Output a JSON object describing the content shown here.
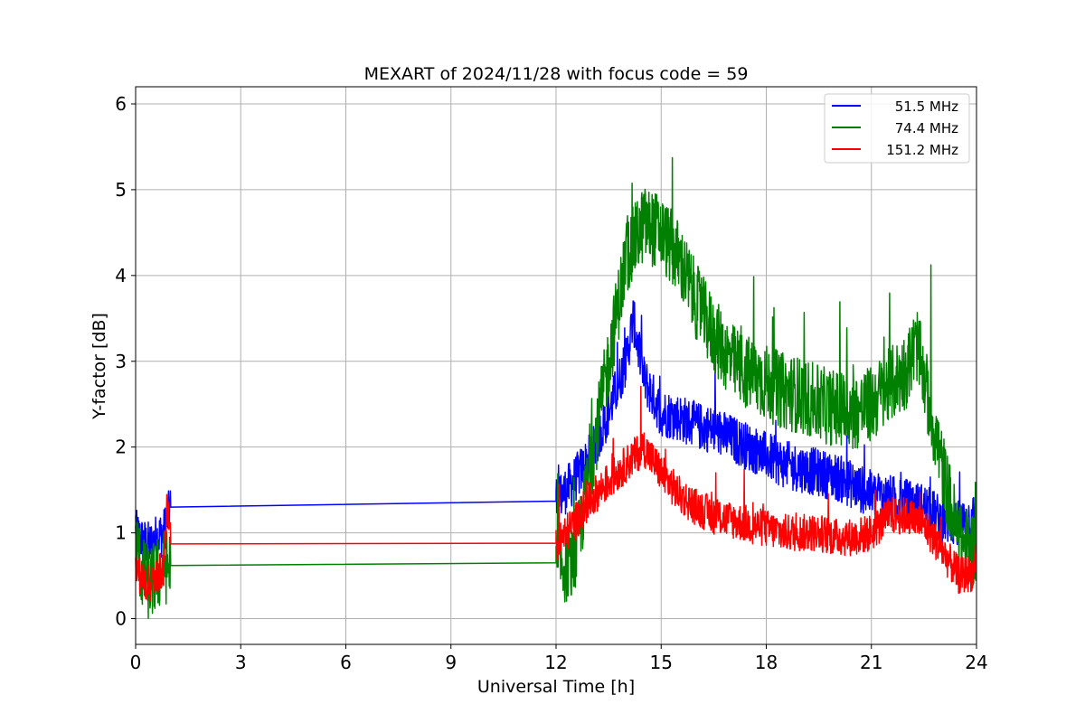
{
  "chart_data": {
    "type": "line",
    "title": "MEXART of 2024/11/28 with focus code = 59",
    "xlabel": "Universal Time [h]",
    "ylabel": "Y-factor [dB]",
    "xlim": [
      0,
      24
    ],
    "ylim": [
      -0.3,
      6.2
    ],
    "xticks": [
      0,
      3,
      6,
      9,
      12,
      15,
      18,
      21,
      24
    ],
    "yticks": [
      0,
      1,
      2,
      3,
      4,
      5,
      6
    ],
    "grid": true,
    "legend_position": "top-right",
    "series": [
      {
        "name": " 51.5 MHz",
        "color": "#0000ff",
        "x": [
          0,
          0.2,
          0.4,
          0.6,
          0.8,
          1.0,
          12.0,
          12.5,
          13.0,
          13.5,
          14.0,
          14.2,
          14.5,
          15.0,
          15.5,
          16.0,
          16.5,
          17.0,
          17.5,
          18.0,
          18.5,
          19.0,
          19.5,
          20.0,
          20.5,
          21.0,
          21.5,
          22.0,
          22.5,
          23.0,
          23.5,
          24.0
        ],
        "values": [
          1.0,
          0.9,
          0.85,
          0.95,
          1.0,
          1.3,
          1.37,
          1.6,
          1.9,
          2.4,
          3.0,
          3.5,
          2.8,
          2.4,
          2.35,
          2.25,
          2.2,
          2.1,
          2.0,
          1.9,
          1.8,
          1.75,
          1.7,
          1.65,
          1.55,
          1.45,
          1.4,
          1.35,
          1.3,
          1.15,
          1.1,
          1.2
        ],
        "noise": 0.28
      },
      {
        "name": " 74.4 MHz",
        "color": "#008000",
        "x": [
          0,
          0.2,
          0.4,
          0.6,
          0.8,
          1.0,
          12.0,
          12.5,
          13.0,
          13.5,
          14.0,
          14.5,
          15.0,
          15.5,
          16.0,
          16.5,
          17.0,
          17.5,
          18.0,
          18.5,
          19.0,
          19.5,
          20.0,
          20.5,
          21.0,
          21.5,
          22.0,
          22.3,
          22.5,
          23.0,
          23.5,
          24.0
        ],
        "values": [
          0.9,
          0.5,
          0.4,
          0.5,
          0.6,
          0.62,
          0.65,
          0.6,
          1.8,
          3.0,
          4.2,
          4.6,
          4.5,
          4.2,
          3.7,
          3.3,
          3.0,
          2.85,
          2.75,
          2.65,
          2.6,
          2.5,
          2.45,
          2.4,
          2.5,
          2.7,
          2.9,
          3.2,
          2.8,
          1.8,
          0.9,
          0.8
        ],
        "noise": 0.45
      },
      {
        "name": "151.2 MHz",
        "color": "#ff0000",
        "x": [
          0,
          0.2,
          0.4,
          0.6,
          0.8,
          0.9,
          1.0,
          12.0,
          12.5,
          13.0,
          13.5,
          14.0,
          14.5,
          15.0,
          15.5,
          16.0,
          16.5,
          17.0,
          17.5,
          18.0,
          18.5,
          19.0,
          19.5,
          20.0,
          20.5,
          21.0,
          21.5,
          22.0,
          22.5,
          23.0,
          23.5,
          24.0
        ],
        "values": [
          0.6,
          0.45,
          0.4,
          0.5,
          0.6,
          1.3,
          0.87,
          0.88,
          1.1,
          1.4,
          1.6,
          1.8,
          2.0,
          1.7,
          1.45,
          1.3,
          1.2,
          1.15,
          1.1,
          1.05,
          1.0,
          1.0,
          1.0,
          0.95,
          0.95,
          1.0,
          1.2,
          1.2,
          1.1,
          0.8,
          0.5,
          0.55
        ],
        "noise": 0.22
      }
    ]
  }
}
